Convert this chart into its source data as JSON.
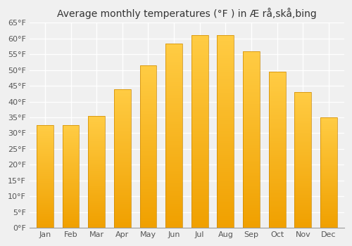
{
  "title": "Average monthly temperatures (°F ) in Æ rå,skå,bing",
  "months": [
    "Jan",
    "Feb",
    "Mar",
    "Apr",
    "May",
    "Jun",
    "Jul",
    "Aug",
    "Sep",
    "Oct",
    "Nov",
    "Dec"
  ],
  "values": [
    32.5,
    32.5,
    35.5,
    44.0,
    51.5,
    58.5,
    61.0,
    61.0,
    56.0,
    49.5,
    43.0,
    35.0
  ],
  "bar_color_dark": "#F0A000",
  "bar_color_light": "#FFCC44",
  "ylim": [
    0,
    65
  ],
  "yticks": [
    0,
    5,
    10,
    15,
    20,
    25,
    30,
    35,
    40,
    45,
    50,
    55,
    60,
    65
  ],
  "ytick_labels": [
    "0°F",
    "5°F",
    "10°F",
    "15°F",
    "20°F",
    "25°F",
    "30°F",
    "35°F",
    "40°F",
    "45°F",
    "50°F",
    "55°F",
    "60°F",
    "65°F"
  ],
  "bg_color": "#f0f0f0",
  "grid_color": "#ffffff",
  "title_fontsize": 10,
  "tick_fontsize": 8,
  "bar_width": 0.65,
  "n_gradient": 100
}
